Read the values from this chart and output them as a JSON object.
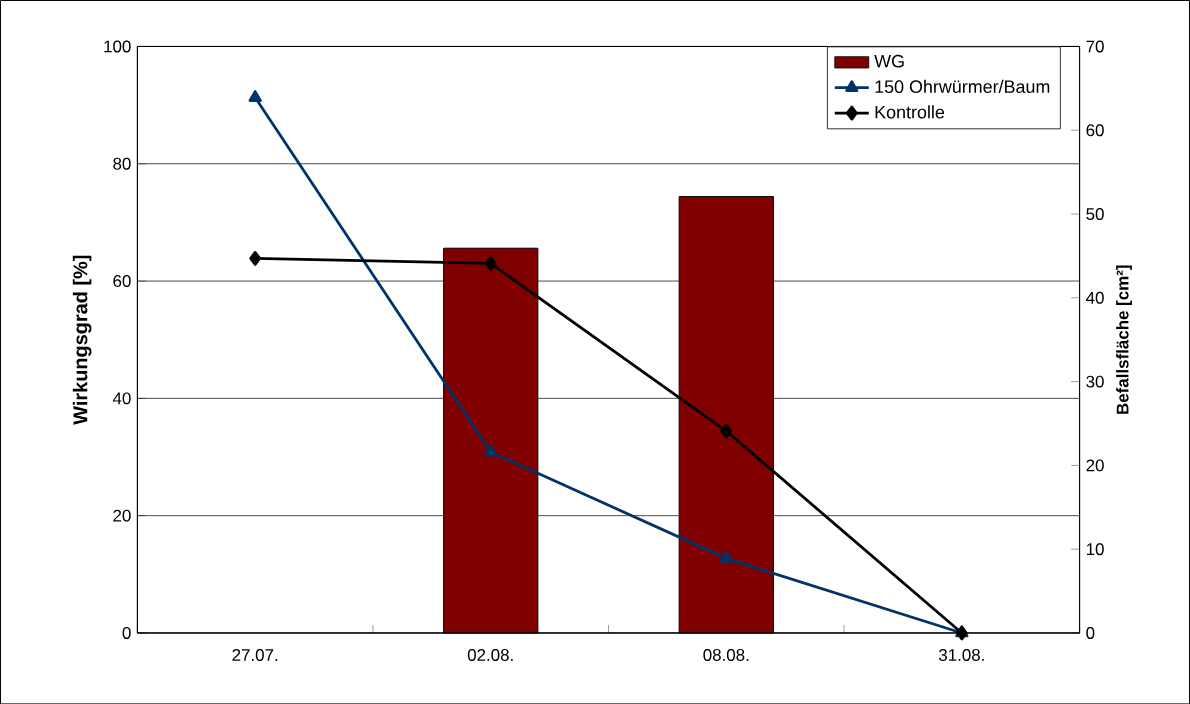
{
  "chart_data": {
    "type": "bar",
    "categories": [
      "27.07.",
      "02.08.",
      "08.08.",
      "31.08."
    ],
    "ylabel": "Wirkungsgrad [%]",
    "y2label": "Befallsfläche [cm²]",
    "ylim": [
      0,
      100
    ],
    "yticks": [
      0,
      20,
      40,
      60,
      80,
      100
    ],
    "y2lim": [
      0,
      70
    ],
    "y2ticks": [
      0,
      10,
      20,
      30,
      40,
      50,
      60,
      70
    ],
    "grid": "y",
    "legend": "top right",
    "series": [
      {
        "name": "WG",
        "color": "#800000",
        "values": [
          null,
          65.6,
          74.4,
          null
        ]
      },
      {
        "name": "150 Ohrwürmer/Baum",
        "type": "line",
        "axis": "y2",
        "color": "#003366",
        "marker": "triangle",
        "values": [
          63.9,
          21.6,
          8.9,
          0
        ]
      },
      {
        "name": "Kontrolle",
        "type": "line",
        "axis": "y2",
        "color": "#000000",
        "marker": "diamond",
        "values": [
          44.7,
          44.1,
          24.1,
          0
        ]
      }
    ]
  }
}
